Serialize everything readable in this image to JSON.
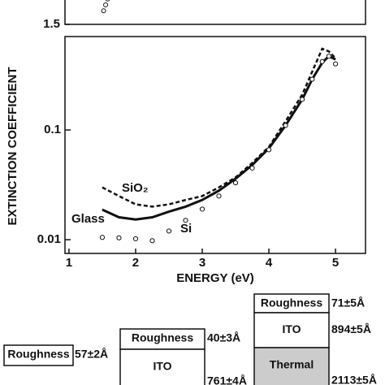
{
  "chart_data": [
    {
      "type": "scatter",
      "yticks": [
        1.5
      ],
      "ylim": [
        1.5,
        1.75
      ],
      "xlim": [
        0.94,
        5.45
      ],
      "x": [
        1.52,
        1.55,
        1.58
      ],
      "values": [
        1.57,
        1.6,
        1.63
      ]
    },
    {
      "type": "line",
      "xlabel": "ENERGY (eV)",
      "ylabel": "EXTINCTION COEFFICIENT",
      "log_y": true,
      "xlim": [
        0.94,
        5.45
      ],
      "xticks": [
        1,
        2,
        3,
        4,
        5
      ],
      "ylim": [
        0.0075,
        0.71
      ],
      "yticks": [
        0.01,
        0.1
      ],
      "x": [
        1.5,
        1.75,
        2.0,
        2.25,
        2.5,
        2.75,
        3.0,
        3.25,
        3.5,
        3.75,
        4.0,
        4.25,
        4.5,
        4.65,
        4.8,
        4.9,
        5.0
      ],
      "series": [
        {
          "name": "SiO₂",
          "style": "dashed",
          "color": "#111",
          "values": [
            0.03,
            0.025,
            0.021,
            0.02,
            0.021,
            0.023,
            0.025,
            0.03,
            0.037,
            0.05,
            0.07,
            0.12,
            0.21,
            0.34,
            0.55,
            0.52,
            0.45
          ]
        },
        {
          "name": "Glass",
          "style": "solid",
          "color": "#111",
          "values": [
            0.0188,
            0.016,
            0.0153,
            0.016,
            0.018,
            0.02,
            0.023,
            0.028,
            0.036,
            0.048,
            0.068,
            0.11,
            0.19,
            0.29,
            0.41,
            0.47,
            0.44
          ]
        },
        {
          "name": "Si",
          "style": "circles",
          "color": "#111",
          "values": [
            0.0105,
            0.0104,
            0.0102,
            0.0098,
            0.012,
            0.015,
            0.019,
            0.025,
            0.033,
            0.045,
            0.066,
            0.11,
            0.19,
            0.29,
            0.42,
            0.47,
            0.4
          ]
        }
      ]
    }
  ],
  "layers": [
    {
      "boxes": [
        "Roughness"
      ],
      "labels": [
        "57±2Å"
      ]
    },
    {
      "boxes": [
        "Roughness",
        "ITO"
      ],
      "labels": [
        "40±3Å",
        "761±4Å"
      ]
    },
    {
      "boxes": [
        "Roughness",
        "ITO",
        "Thermal"
      ],
      "labels": [
        "71±5Å",
        "894±5Å",
        "2113±5Å"
      ]
    }
  ]
}
